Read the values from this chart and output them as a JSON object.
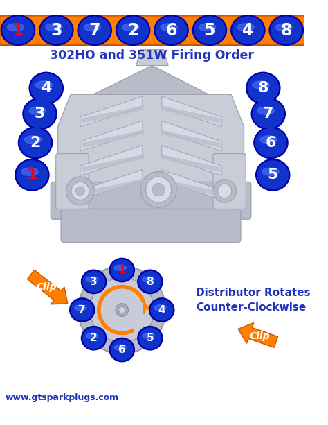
{
  "bg_color": "#ffffff",
  "orange_bar_color": "#FF8000",
  "orange_bar_edge": "#CC5500",
  "blue_dark": "#0000AA",
  "blue_mid": "#1133CC",
  "blue_light": "#3355EE",
  "blue_highlight": "#5577FF",
  "red_color": "#FF0000",
  "white_color": "#FFFFFF",
  "top_numbers": [
    "1",
    "3",
    "7",
    "2",
    "6",
    "5",
    "4",
    "8"
  ],
  "title": "302HO and 351W Firing Order",
  "title_color": "#2233BB",
  "left_cylinders": [
    "4",
    "3",
    "2",
    "1"
  ],
  "right_cylinders": [
    "8",
    "7",
    "6",
    "5"
  ],
  "distributor_title": "Distributor Rotates\nCounter-Clockwise",
  "distributor_title_color": "#2233BB",
  "orange_arrow": "#FF8000",
  "orange_arrow_edge": "#CC5500",
  "clip_text_color": "#FFFFFF",
  "website": "www.gtsparkplugs.com",
  "website_color": "#2233BB",
  "engine_base": "#C8CDD8",
  "engine_mid": "#B8BCC8",
  "engine_dark": "#A0A4B0",
  "engine_light": "#D8DCE8"
}
